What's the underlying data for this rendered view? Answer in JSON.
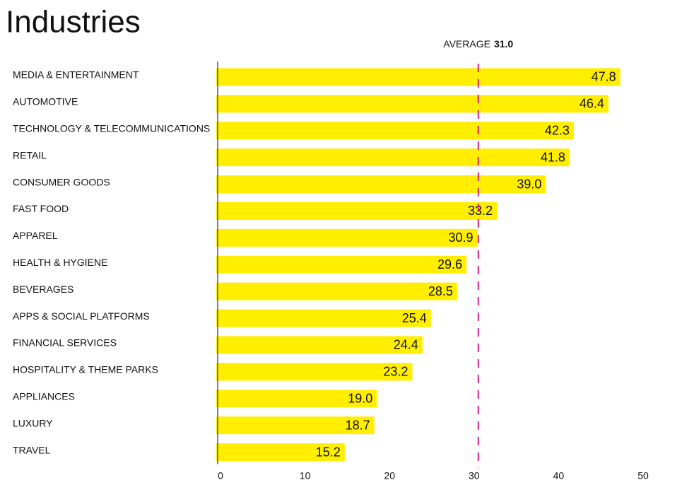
{
  "chart_data": {
    "type": "bar",
    "orientation": "horizontal",
    "title": "Industries",
    "categories": [
      "MEDIA & ENTERTAINMENT",
      "AUTOMOTIVE",
      "TECHNOLOGY & TELECOMMUNICATIONS",
      "RETAIL",
      "CONSUMER GOODS",
      "FAST FOOD",
      "APPAREL",
      "HEALTH & HYGIENE",
      "BEVERAGES",
      "APPS & SOCIAL PLATFORMS",
      "FINANCIAL SERVICES",
      "HOSPITALITY & THEME PARKS",
      "APPLIANCES",
      "LUXURY",
      "TRAVEL"
    ],
    "values": [
      47.8,
      46.4,
      42.3,
      41.8,
      39.0,
      33.2,
      30.9,
      29.6,
      28.5,
      25.4,
      24.4,
      23.2,
      19.0,
      18.7,
      15.2
    ],
    "value_labels": [
      "47.8",
      "46.4",
      "42.3",
      "41.8",
      "39.0",
      "33.2",
      "30.9",
      "29.6",
      "28.5",
      "25.4",
      "24.4",
      "23.2",
      "19.0",
      "18.7",
      "15.2"
    ],
    "color": "#ffee00",
    "xlim": [
      0,
      50
    ],
    "xticks": [
      0,
      10,
      20,
      30,
      40,
      50
    ],
    "average": {
      "label": "AVERAGE",
      "value": 31.0,
      "value_label": "31.0",
      "color": "#e0218a"
    }
  }
}
